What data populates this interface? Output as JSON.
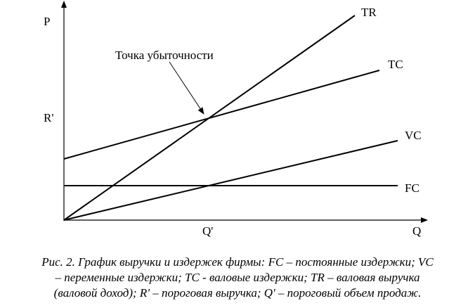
{
  "diagram": {
    "axes": {
      "y_label": "P",
      "x_label": "Q"
    },
    "ticks": {
      "y_threshold": "R'",
      "x_threshold": "Q'"
    },
    "lines": {
      "tr": "TR",
      "tc": "TC",
      "vc": "VC",
      "fc": "FC"
    },
    "annotation": "Точка убыточности"
  },
  "caption": {
    "line1": "Рис. 2. График выручки и издержек фирмы: FC – постоянные издержки; VC",
    "line2": "– переменные издержки;  TC -  валовые издержки;  TR – валовая выручка",
    "line3": "(валовой доход);  R' – пороговая выручка;  Q' – пороговый объем продаж."
  }
}
